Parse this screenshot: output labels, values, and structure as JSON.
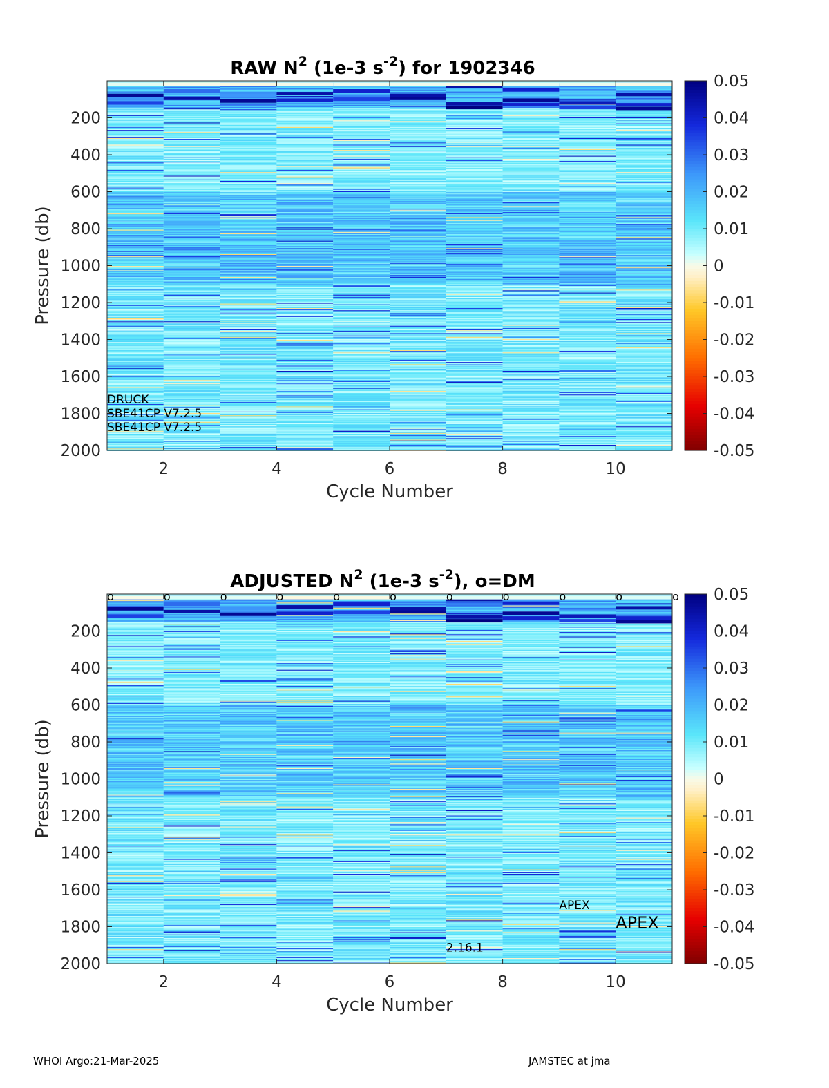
{
  "chart_data": [
    {
      "type": "heatmap",
      "title_parts": [
        "RAW N",
        "2",
        " (1e-3 s",
        "-2",
        ") for 1902346"
      ],
      "xlabel": "Cycle Number",
      "ylabel": "Pressure (db)",
      "xlim": [
        1,
        11
      ],
      "ylim": [
        0,
        2000
      ],
      "y_reversed": true,
      "x_ticks": [
        "2",
        "4",
        "6",
        "8",
        "10"
      ],
      "y_ticks": [
        "200",
        "400",
        "600",
        "800",
        "1000",
        "1200",
        "1400",
        "1600",
        "1800",
        "2000"
      ],
      "cycles": [
        1,
        2,
        3,
        4,
        5,
        6,
        7,
        8,
        9,
        10
      ],
      "colorbar": {
        "ticks": [
          "0.05",
          "0.04",
          "0.03",
          "0.02",
          "0.01",
          "0",
          "-0.01",
          "-0.02",
          "-0.03",
          "-0.04",
          "-0.05"
        ],
        "range": [
          -0.05,
          0.05
        ]
      },
      "annotations": [
        {
          "text": "DRUCK",
          "x": 1.0,
          "y": 1745
        },
        {
          "text": "SBE41CP V7.2.5",
          "x": 1.0,
          "y": 1820
        },
        {
          "text": "SBE41CP V7.2.5",
          "x": 1.0,
          "y": 1895
        }
      ]
    },
    {
      "type": "heatmap",
      "title_parts": [
        "ADJUSTED N",
        "2",
        " (1e-3 s",
        "-2",
        "), o=DM"
      ],
      "xlabel": "Cycle Number",
      "ylabel": "Pressure (db)",
      "xlim": [
        1,
        11
      ],
      "ylim": [
        0,
        2000
      ],
      "y_reversed": true,
      "x_ticks": [
        "2",
        "4",
        "6",
        "8",
        "10"
      ],
      "y_ticks": [
        "200",
        "400",
        "600",
        "800",
        "1000",
        "1200",
        "1400",
        "1600",
        "1800",
        "2000"
      ],
      "cycles": [
        1,
        2,
        3,
        4,
        5,
        6,
        7,
        8,
        9,
        10
      ],
      "dm_marker": "o",
      "dm_cycles": [
        1,
        2,
        3,
        4,
        5,
        6,
        7,
        8,
        9,
        10,
        11
      ],
      "colorbar": {
        "ticks": [
          "0.05",
          "0.04",
          "0.03",
          "0.02",
          "0.01",
          "0",
          "-0.01",
          "-0.02",
          "-0.03",
          "-0.04",
          "-0.05"
        ],
        "range": [
          -0.05,
          0.05
        ]
      },
      "annotations": [
        {
          "text": "APEX",
          "x": 9.0,
          "y": 1705,
          "size": "small"
        },
        {
          "text": "APEX",
          "x": 10.0,
          "y": 1810,
          "size": "large"
        },
        {
          "text": "2.16.1",
          "x": 7.0,
          "y": 1935,
          "size": "small"
        }
      ]
    }
  ],
  "footer": {
    "left": "WHOI Argo:21-Mar-2025",
    "right": "JAMSTEC at jma"
  }
}
